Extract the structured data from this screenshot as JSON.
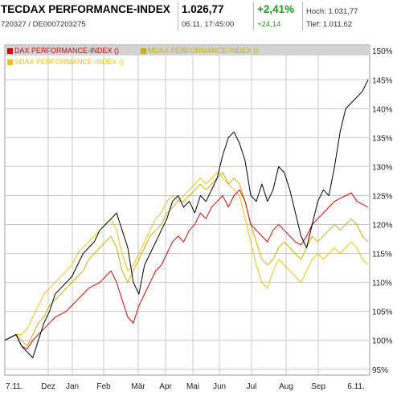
{
  "header": {
    "title": "TECDAX PERFORMANCE-INDEX",
    "ids": "720327  /  DE0007203275",
    "price": "1.026,77",
    "datetime": "06.11. 17:45:00",
    "change_pct": "+2,41%",
    "change_abs": "+24,14",
    "high": "Hoch: 1.031,77",
    "low": "Tief: 1.011,62"
  },
  "colors": {
    "tecdax": "#000000",
    "dax": "#dd0000",
    "mdax": "#c8b400",
    "sdax": "#f2c200",
    "grid": "#c8c8c8"
  },
  "chart_data": {
    "type": "line",
    "ylim": [
      94,
      151
    ],
    "y_ticks": [
      "95%",
      "100%",
      "105%",
      "110%",
      "115%",
      "120%",
      "125%",
      "130%",
      "135%",
      "140%",
      "145%",
      "150%"
    ],
    "x_ticks": [
      "7.11.",
      "Dez",
      "Jan",
      "Feb",
      "Mär",
      "Apr",
      "Mai",
      "Jun",
      "Jul",
      "Aug",
      "Sep",
      "6.11."
    ],
    "legend": [
      "DAX PERFORMANCE-INDEX ()",
      "MDAX PERFORMANCE-INDEX ()",
      "SDAX PERFORMANCE-INDEX ()"
    ],
    "x": [
      0,
      4,
      8,
      12,
      16,
      20,
      24,
      28,
      32,
      36,
      40,
      44,
      48,
      52,
      56,
      60,
      64,
      68,
      72,
      76,
      80,
      84,
      88,
      92,
      96,
      100,
      104,
      108,
      112,
      116,
      120,
      124,
      128,
      132,
      136,
      140,
      144,
      148,
      152,
      156,
      160,
      164,
      168,
      172,
      176,
      180,
      184,
      188,
      192,
      196,
      200,
      204,
      208,
      212,
      216,
      220,
      224,
      228,
      232,
      236,
      240,
      244,
      248,
      252,
      256,
      260
    ],
    "series": [
      {
        "name": "TECDAX PERFORMANCE-INDEX",
        "key": "tecdax",
        "values": [
          100,
          100.5,
          101,
          99,
          98,
          97,
          100,
          103,
          105,
          108,
          109,
          110,
          111,
          113,
          115,
          116,
          117,
          119,
          120,
          121,
          122,
          119,
          116,
          110,
          108,
          113,
          115,
          117,
          119,
          121,
          124,
          125,
          123,
          124,
          122,
          125,
          124,
          126,
          128,
          132,
          135,
          136,
          134,
          131,
          125,
          124,
          127,
          124,
          126,
          130,
          129,
          126,
          122,
          118,
          116,
          120,
          124,
          126,
          125,
          130,
          136,
          140,
          141,
          142,
          143,
          145
        ]
      },
      {
        "name": "DAX PERFORMANCE-INDEX",
        "key": "dax",
        "values": [
          100,
          100.5,
          101,
          99,
          98.5,
          100,
          101,
          102,
          103,
          104,
          104.5,
          105,
          106,
          107,
          108,
          109,
          109.5,
          110,
          111,
          112,
          110,
          107,
          104,
          103,
          106,
          108,
          110,
          112,
          113,
          115,
          117,
          118,
          117,
          119,
          120,
          122,
          121,
          123,
          124,
          125,
          123,
          125,
          126,
          124,
          120,
          119,
          118,
          117,
          119,
          120,
          119,
          118,
          117,
          116.5,
          118,
          120,
          121,
          122,
          123,
          124,
          124.5,
          125,
          125.5,
          124,
          123.5,
          123
        ]
      },
      {
        "name": "MDAX PERFORMANCE-INDEX",
        "key": "mdax",
        "values": [
          100,
          100.5,
          101,
          100,
          99,
          101,
          103,
          104,
          106,
          107,
          108,
          109,
          110,
          111,
          112,
          114,
          115,
          116,
          117,
          118,
          116,
          112,
          110,
          112,
          114,
          116,
          118,
          119,
          120,
          122,
          123,
          124,
          124,
          125,
          126,
          127,
          126,
          127,
          128,
          129,
          127,
          128,
          127,
          124,
          120,
          117,
          114,
          113,
          114,
          116,
          117,
          116,
          115,
          114,
          116,
          118,
          117,
          118,
          119,
          120,
          119,
          120,
          121,
          120,
          118,
          117
        ]
      },
      {
        "name": "SDAX PERFORMANCE-INDEX",
        "key": "sdax",
        "values": [
          100,
          100.5,
          101,
          101,
          102,
          104,
          106,
          108,
          109,
          110,
          111,
          112,
          113,
          115,
          116,
          117,
          118,
          119,
          120,
          121,
          119,
          115,
          112,
          113,
          115,
          117,
          119,
          121,
          122,
          124,
          125,
          124,
          125,
          126,
          127,
          128,
          127,
          128,
          129,
          128,
          127,
          126,
          125,
          121,
          117,
          113,
          110,
          109,
          112,
          114,
          113,
          112,
          111,
          110,
          112,
          114,
          115,
          114,
          115,
          116,
          115,
          116,
          117,
          116,
          114,
          113
        ]
      }
    ]
  }
}
